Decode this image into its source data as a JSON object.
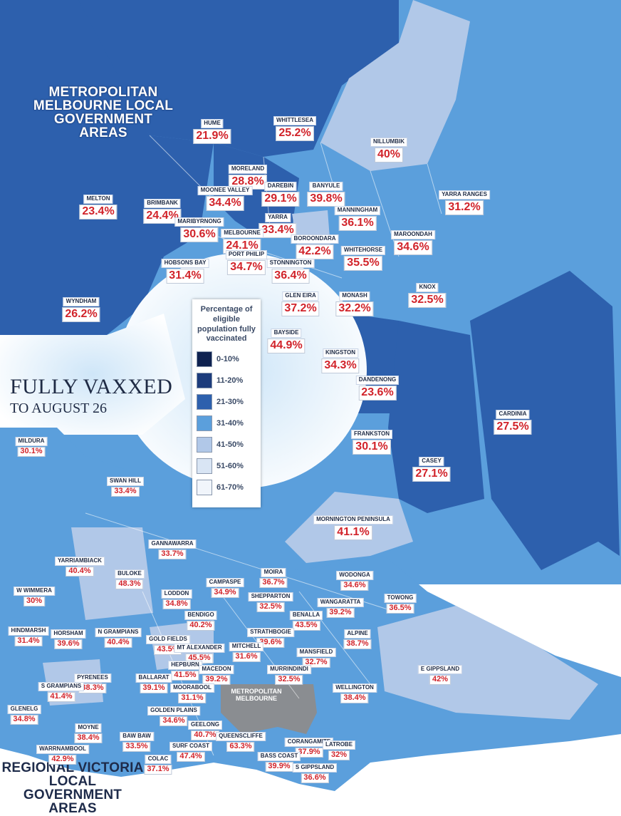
{
  "title": "FULLY VAXXED",
  "subtitle": "TO AUGUST 26",
  "metro_heading": "METROPOLITAN MELBOURNE LOCAL GOVERNMENT AREAS",
  "regional_heading": "REGIONAL VICTORIA LOCAL GOVERNMENT AREAS",
  "metro_mask_label": "METROPOLITAN MELBOURNE",
  "legend": {
    "title": "Percentage of eligible population fully vaccinated",
    "items": [
      {
        "label": "0-10%",
        "color": "#0f2250"
      },
      {
        "label": "11-20%",
        "color": "#1d3c7c"
      },
      {
        "label": "21-30%",
        "color": "#2d60ad"
      },
      {
        "label": "31-40%",
        "color": "#5b9fdc"
      },
      {
        "label": "41-50%",
        "color": "#b1c8e8"
      },
      {
        "label": "51-60%",
        "color": "#d9e5f4"
      },
      {
        "label": "61-70%",
        "color": "#f1f5fb"
      }
    ]
  },
  "metro_lgas": [
    {
      "name": "HUME",
      "value": "21.9%"
    },
    {
      "name": "WHITTLESEA",
      "value": "25.2%"
    },
    {
      "name": "NILLUMBIK",
      "value": "40%"
    },
    {
      "name": "MORELAND",
      "value": "28.8%"
    },
    {
      "name": "MOONEE VALLEY",
      "value": "34.4%"
    },
    {
      "name": "DAREBIN",
      "value": "29.1%"
    },
    {
      "name": "BANYULE",
      "value": "39.8%"
    },
    {
      "name": "YARRA RANGES",
      "value": "31.2%"
    },
    {
      "name": "MELTON",
      "value": "23.4%"
    },
    {
      "name": "BRIMBANK",
      "value": "24.4%"
    },
    {
      "name": "MANNINGHAM",
      "value": "36.1%"
    },
    {
      "name": "MARIBYRNONG",
      "value": "30.6%"
    },
    {
      "name": "YARRA",
      "value": "33.4%"
    },
    {
      "name": "MELBOURNE",
      "value": "24.1%"
    },
    {
      "name": "BOROONDARA",
      "value": "42.2%"
    },
    {
      "name": "MAROONDAH",
      "value": "34.6%"
    },
    {
      "name": "PORT PHILIP",
      "value": "34.7%"
    },
    {
      "name": "WHITEHORSE",
      "value": "35.5%"
    },
    {
      "name": "HOBSONS BAY",
      "value": "31.4%"
    },
    {
      "name": "STONNINGTON",
      "value": "36.4%"
    },
    {
      "name": "KNOX",
      "value": "32.5%"
    },
    {
      "name": "GLEN EIRA",
      "value": "37.2%"
    },
    {
      "name": "MONASH",
      "value": "32.2%"
    },
    {
      "name": "WYNDHAM",
      "value": "26.2%"
    },
    {
      "name": "BAYSIDE",
      "value": "44.9%"
    },
    {
      "name": "KINGSTON",
      "value": "34.3%"
    },
    {
      "name": "DANDENONG",
      "value": "23.6%"
    },
    {
      "name": "CARDINIA",
      "value": "27.5%"
    },
    {
      "name": "FRANKSTON",
      "value": "30.1%"
    },
    {
      "name": "CASEY",
      "value": "27.1%"
    },
    {
      "name": "MORNINGTON PENINSULA",
      "value": "41.1%"
    }
  ],
  "regional_lgas": [
    {
      "name": "MILDURA",
      "value": "30.1%"
    },
    {
      "name": "SWAN HILL",
      "value": "33.4%"
    },
    {
      "name": "GANNAWARRA",
      "value": "33.7%"
    },
    {
      "name": "YARRIAMBIACK",
      "value": "40.4%"
    },
    {
      "name": "BULOKE",
      "value": "48.3%"
    },
    {
      "name": "MOIRA",
      "value": "36.7%"
    },
    {
      "name": "WODONGA",
      "value": "34.6%"
    },
    {
      "name": "CAMPASPE",
      "value": "34.9%"
    },
    {
      "name": "W WIMMERA",
      "value": "30%"
    },
    {
      "name": "LODDON",
      "value": "34.8%"
    },
    {
      "name": "SHEPPARTON",
      "value": "32.5%"
    },
    {
      "name": "WANGARATTA",
      "value": "39.2%"
    },
    {
      "name": "TOWONG",
      "value": "36.5%"
    },
    {
      "name": "BENDIGO",
      "value": "40.2%"
    },
    {
      "name": "BENALLA",
      "value": "43.5%"
    },
    {
      "name": "HINDMARSH",
      "value": "31.4%"
    },
    {
      "name": "HORSHAM",
      "value": "39.6%"
    },
    {
      "name": "N GRAMPIANS",
      "value": "40.4%"
    },
    {
      "name": "STRATHBOGIE",
      "value": "39.6%"
    },
    {
      "name": "ALPINE",
      "value": "38.7%"
    },
    {
      "name": "GOLD FIELDS",
      "value": "43.5%"
    },
    {
      "name": "MT ALEXANDER",
      "value": "45.5%"
    },
    {
      "name": "MITCHELL",
      "value": "31.6%"
    },
    {
      "name": "MANSFIELD",
      "value": "32.7%"
    },
    {
      "name": "HEPBURN",
      "value": "41.5%"
    },
    {
      "name": "MACEDON",
      "value": "39.2%"
    },
    {
      "name": "PYRENEES",
      "value": "38.3%"
    },
    {
      "name": "BALLARAT",
      "value": "39.1%"
    },
    {
      "name": "MURRINDINDI",
      "value": "32.5%"
    },
    {
      "name": "E GIPPSLAND",
      "value": "42%"
    },
    {
      "name": "S GRAMPIANS",
      "value": "41.4%"
    },
    {
      "name": "MOORABOOL",
      "value": "31.1%"
    },
    {
      "name": "WELLINGTON",
      "value": "38.4%"
    },
    {
      "name": "GLENELG",
      "value": "34.8%"
    },
    {
      "name": "GOLDEN PLAINS",
      "value": "34.6%"
    },
    {
      "name": "GEELONG",
      "value": "40.7%"
    },
    {
      "name": "MOYNE",
      "value": "38.4%"
    },
    {
      "name": "BAW BAW",
      "value": "33.5%"
    },
    {
      "name": "CORANGAMITE",
      "value": "37.9%"
    },
    {
      "name": "QUEENSCLIFFE",
      "value": "63.3%"
    },
    {
      "name": "SURF COAST",
      "value": "47.4%"
    },
    {
      "name": "LATROBE",
      "value": "32%"
    },
    {
      "name": "WARRNAMBOOL",
      "value": "42.9%"
    },
    {
      "name": "BASS COAST",
      "value": "39.9%"
    },
    {
      "name": "COLAC",
      "value": "37.1%"
    },
    {
      "name": "S GIPPSLAND",
      "value": "36.6%"
    }
  ]
}
